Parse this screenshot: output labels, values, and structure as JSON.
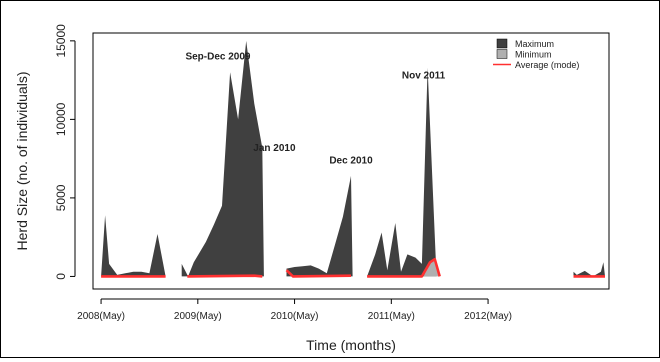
{
  "chart_data": {
    "type": "area",
    "title": "",
    "xlabel": "Time (months)",
    "ylabel": "Herd Size (no. of individuals)",
    "x_range": [
      0,
      64
    ],
    "ylim": [
      -800,
      15500
    ],
    "y_ticks": [
      0,
      5000,
      10000,
      15000
    ],
    "x_ticks": [
      {
        "x": 1,
        "label": "2008(May)"
      },
      {
        "x": 13,
        "label": "2009(May)"
      },
      {
        "x": 25,
        "label": "2010(May)"
      },
      {
        "x": 37,
        "label": "2011(May)"
      },
      {
        "x": 49,
        "label": "2012(May)"
      }
    ],
    "legend": {
      "placement": "top-right",
      "entries": [
        {
          "label": "Maximum",
          "color": "#404040",
          "kind": "box"
        },
        {
          "label": "Minimum",
          "color": "#b0b0b0",
          "kind": "box"
        },
        {
          "label": "Average (mode)",
          "color": "#ff3030",
          "kind": "line"
        }
      ]
    },
    "annotations": [
      {
        "label": "Sep-Dec 2009",
        "x": 15.5,
        "y": 13800,
        "anchor": "middle"
      },
      {
        "label": "Jan 2010",
        "x": 22.5,
        "y": 8000,
        "anchor": "middle"
      },
      {
        "label": "Dec 2010",
        "x": 32.0,
        "y": 7200,
        "anchor": "middle"
      },
      {
        "label": "Nov 2011",
        "x": 41.0,
        "y": 12600,
        "anchor": "middle"
      }
    ],
    "series": [
      {
        "name": "Maximum",
        "color": "#404040",
        "segments": [
          [
            [
              1,
              0
            ],
            [
              1.5,
              3900
            ],
            [
              2,
              800
            ],
            [
              3,
              100
            ],
            [
              4,
              200
            ],
            [
              5,
              300
            ],
            [
              6,
              300
            ],
            [
              7,
              200
            ],
            [
              8,
              2700
            ],
            [
              9,
              0
            ]
          ],
          [
            [
              11,
              800
            ],
            [
              11.8,
              0
            ],
            [
              12.5,
              900
            ],
            [
              14,
              2200
            ],
            [
              15,
              3300
            ],
            [
              16,
              4500
            ],
            [
              17,
              13000
            ],
            [
              18,
              10000
            ],
            [
              19,
              15000
            ],
            [
              20,
              11000
            ],
            [
              21,
              8200
            ],
            [
              21.2,
              0
            ]
          ],
          [
            [
              24,
              500
            ],
            [
              25,
              600
            ],
            [
              26,
              650
            ],
            [
              27,
              700
            ],
            [
              28,
              500
            ],
            [
              29,
              200
            ],
            [
              30,
              2000
            ],
            [
              31,
              3800
            ],
            [
              32,
              6400
            ],
            [
              32.2,
              0
            ]
          ],
          [
            [
              34,
              0
            ],
            [
              35,
              1400
            ],
            [
              35.8,
              2800
            ],
            [
              36.5,
              400
            ],
            [
              37.5,
              3400
            ],
            [
              38.2,
              300
            ],
            [
              39,
              1400
            ],
            [
              40,
              1200
            ],
            [
              40.8,
              800
            ],
            [
              41.5,
              13300
            ],
            [
              42.6,
              0
            ]
          ],
          [
            [
              59.6,
              300
            ],
            [
              60,
              100
            ],
            [
              61,
              350
            ],
            [
              62,
              0
            ],
            [
              63,
              300
            ],
            [
              63.3,
              900
            ],
            [
              63.5,
              0
            ]
          ]
        ]
      },
      {
        "name": "Minimum",
        "color": "#b0b0b0",
        "segments": [
          [
            [
              41,
              0
            ],
            [
              41.8,
              900
            ],
            [
              42.4,
              1100
            ],
            [
              43,
              0
            ]
          ]
        ]
      },
      {
        "name": "Average (mode)",
        "color": "#ff3030",
        "segments": [
          [
            [
              1,
              0
            ],
            [
              9,
              0
            ]
          ],
          [
            [
              11.7,
              0
            ],
            [
              20,
              50
            ],
            [
              21,
              0
            ]
          ],
          [
            [
              24,
              400
            ],
            [
              24.8,
              0
            ],
            [
              32,
              50
            ]
          ],
          [
            [
              34,
              0
            ],
            [
              40.8,
              0
            ],
            [
              41.8,
              900
            ],
            [
              42.4,
              1100
            ],
            [
              43,
              0
            ]
          ],
          [
            [
              59.6,
              0
            ],
            [
              63.5,
              0
            ]
          ]
        ]
      }
    ]
  }
}
